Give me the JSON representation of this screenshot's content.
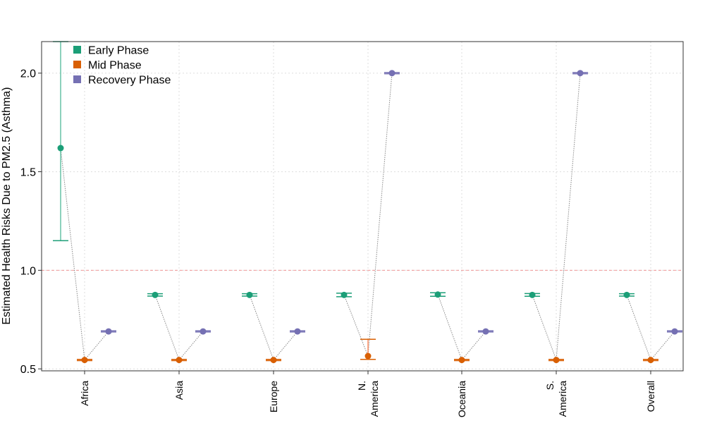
{
  "chart_data": {
    "type": "scatter",
    "title": "",
    "xlabel": "",
    "ylabel": "Estimated Health Risks Due to PM2.5 (Asthma)",
    "categories": [
      [
        "Africa"
      ],
      [
        "Asia"
      ],
      [
        "Europe"
      ],
      [
        "N.",
        "America"
      ],
      [
        "Oceania"
      ],
      [
        "S.",
        "America"
      ],
      [
        "Overall"
      ]
    ],
    "ylim": [
      0.49,
      2.16
    ],
    "yticks": [
      "0.5",
      "1.0",
      "1.5",
      "2.0"
    ],
    "ytick_values": [
      0.5,
      1.0,
      1.5,
      2.0
    ],
    "reference_line": 1.0,
    "grid": true,
    "legend_position": "top-left",
    "series": [
      {
        "name": "Early Phase",
        "color": "#1b9e77",
        "values": [
          1.62,
          0.875,
          0.875,
          0.875,
          0.877,
          0.875,
          0.875
        ],
        "lower": [
          1.15,
          0.869,
          0.869,
          0.866,
          0.868,
          0.868,
          0.869
        ],
        "upper": [
          2.16,
          0.881,
          0.881,
          0.884,
          0.886,
          0.882,
          0.881
        ]
      },
      {
        "name": "Mid Phase",
        "color": "#d95f02",
        "values": [
          0.545,
          0.545,
          0.545,
          0.565,
          0.545,
          0.545,
          0.545
        ],
        "lower": [
          0.542,
          0.542,
          0.542,
          0.548,
          0.542,
          0.542,
          0.542
        ],
        "upper": [
          0.548,
          0.548,
          0.548,
          0.65,
          0.548,
          0.548,
          0.548
        ]
      },
      {
        "name": "Recovery Phase",
        "color": "#7570b3",
        "values": [
          0.69,
          0.69,
          0.69,
          2.0,
          0.69,
          2.0,
          0.69
        ],
        "lower": [
          0.687,
          0.687,
          0.687,
          1.997,
          0.687,
          1.997,
          0.687
        ],
        "upper": [
          0.693,
          0.693,
          0.693,
          2.003,
          0.693,
          2.003,
          0.693
        ]
      }
    ]
  }
}
